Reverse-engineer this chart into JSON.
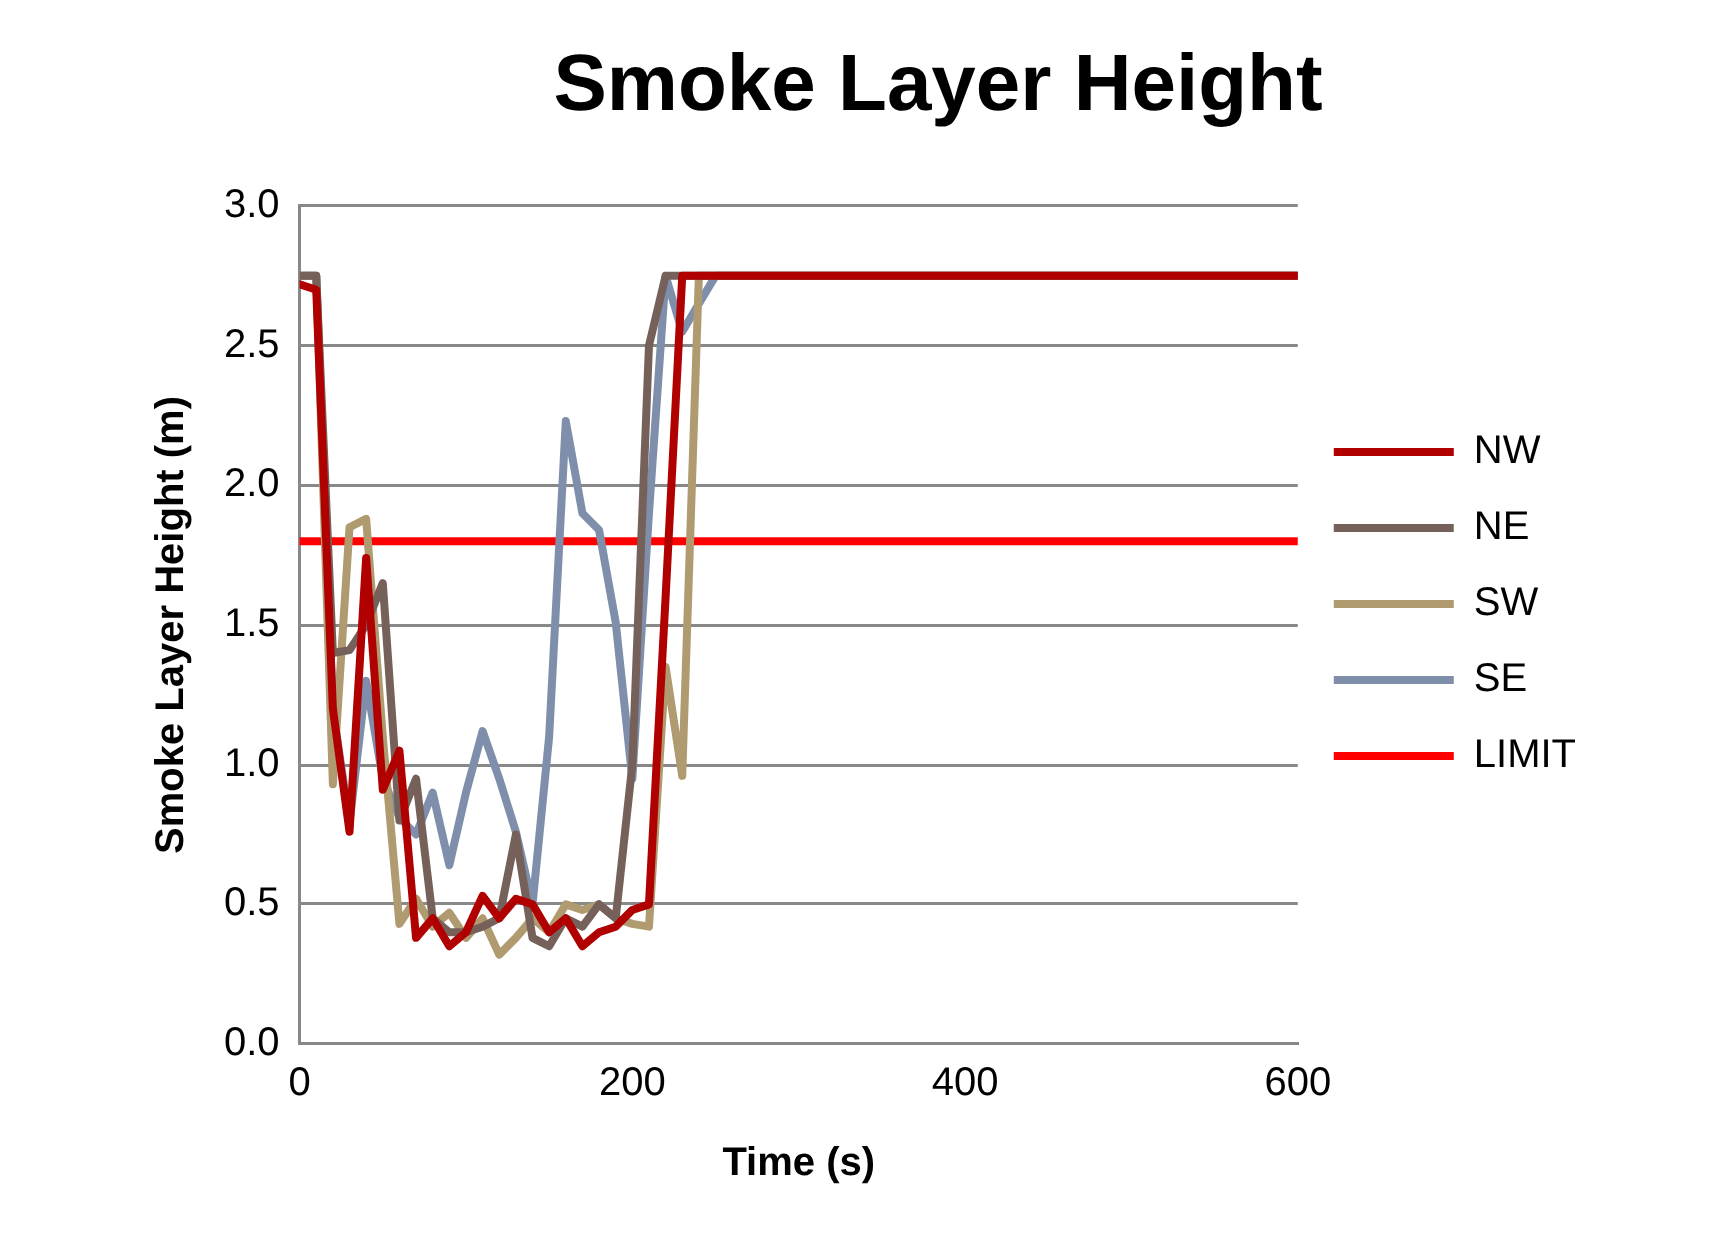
{
  "chart_data": {
    "type": "line",
    "title": "Smoke Layer Height",
    "xlabel": "Time (s)",
    "ylabel": "Smoke Layer Height (m)",
    "x": [
      0,
      10,
      20,
      30,
      40,
      50,
      60,
      70,
      80,
      90,
      100,
      110,
      120,
      130,
      140,
      150,
      160,
      170,
      180,
      190,
      200,
      210,
      220,
      230,
      240,
      250,
      260,
      600
    ],
    "xlim": [
      0,
      600
    ],
    "xticks": [
      0,
      200,
      400,
      600
    ],
    "ylim": [
      0,
      3
    ],
    "yticks": [
      {
        "value": 0,
        "label": "0.0"
      },
      0.5,
      {
        "value": 1,
        "label": "1.0"
      },
      1.5,
      {
        "value": 2,
        "label": "2.0"
      },
      2.5,
      {
        "value": 3,
        "label": "3.0"
      }
    ],
    "grid": "y",
    "legend": "right",
    "marker": "none",
    "line_style": "solid",
    "series": [
      {
        "name": "NW",
        "color": "#b00000",
        "values": [
          2.72,
          2.7,
          1.2,
          0.76,
          1.74,
          0.91,
          1.05,
          0.38,
          0.45,
          0.35,
          0.4,
          0.53,
          0.45,
          0.52,
          0.5,
          0.4,
          0.45,
          0.35,
          0.4,
          0.42,
          0.48,
          0.5,
          1.6,
          2.75,
          2.75,
          2.75,
          2.75,
          2.75
        ]
      },
      {
        "name": "NE",
        "color": "#76615a",
        "values": [
          2.75,
          2.75,
          1.4,
          1.41,
          1.5,
          1.65,
          0.8,
          0.95,
          0.45,
          0.4,
          0.4,
          0.42,
          0.45,
          0.75,
          0.38,
          0.35,
          0.45,
          0.42,
          0.5,
          0.45,
          1.0,
          2.5,
          2.75,
          2.75,
          2.75,
          2.75,
          2.75,
          2.75
        ]
      },
      {
        "name": "SW",
        "color": "#b09a70",
        "values": [
          2.75,
          2.75,
          0.93,
          1.85,
          1.88,
          1.1,
          0.43,
          0.52,
          0.42,
          0.47,
          0.38,
          0.45,
          0.32,
          0.38,
          0.45,
          0.4,
          0.5,
          0.48,
          0.5,
          0.45,
          0.43,
          0.42,
          1.35,
          0.96,
          2.75,
          2.75,
          2.75,
          2.75
        ]
      },
      {
        "name": "SE",
        "color": "#7f8fab",
        "values": [
          2.75,
          2.75,
          1.2,
          0.79,
          1.3,
          0.95,
          0.81,
          0.75,
          0.9,
          0.64,
          0.9,
          1.12,
          0.95,
          0.76,
          0.5,
          1.1,
          2.23,
          1.9,
          1.84,
          1.51,
          0.95,
          1.9,
          2.75,
          2.55,
          2.65,
          2.75,
          2.75,
          2.75
        ]
      },
      {
        "name": "LIMIT",
        "color": "#ff0000",
        "x": [
          0,
          600
        ],
        "values": [
          1.8,
          1.8
        ]
      }
    ]
  }
}
